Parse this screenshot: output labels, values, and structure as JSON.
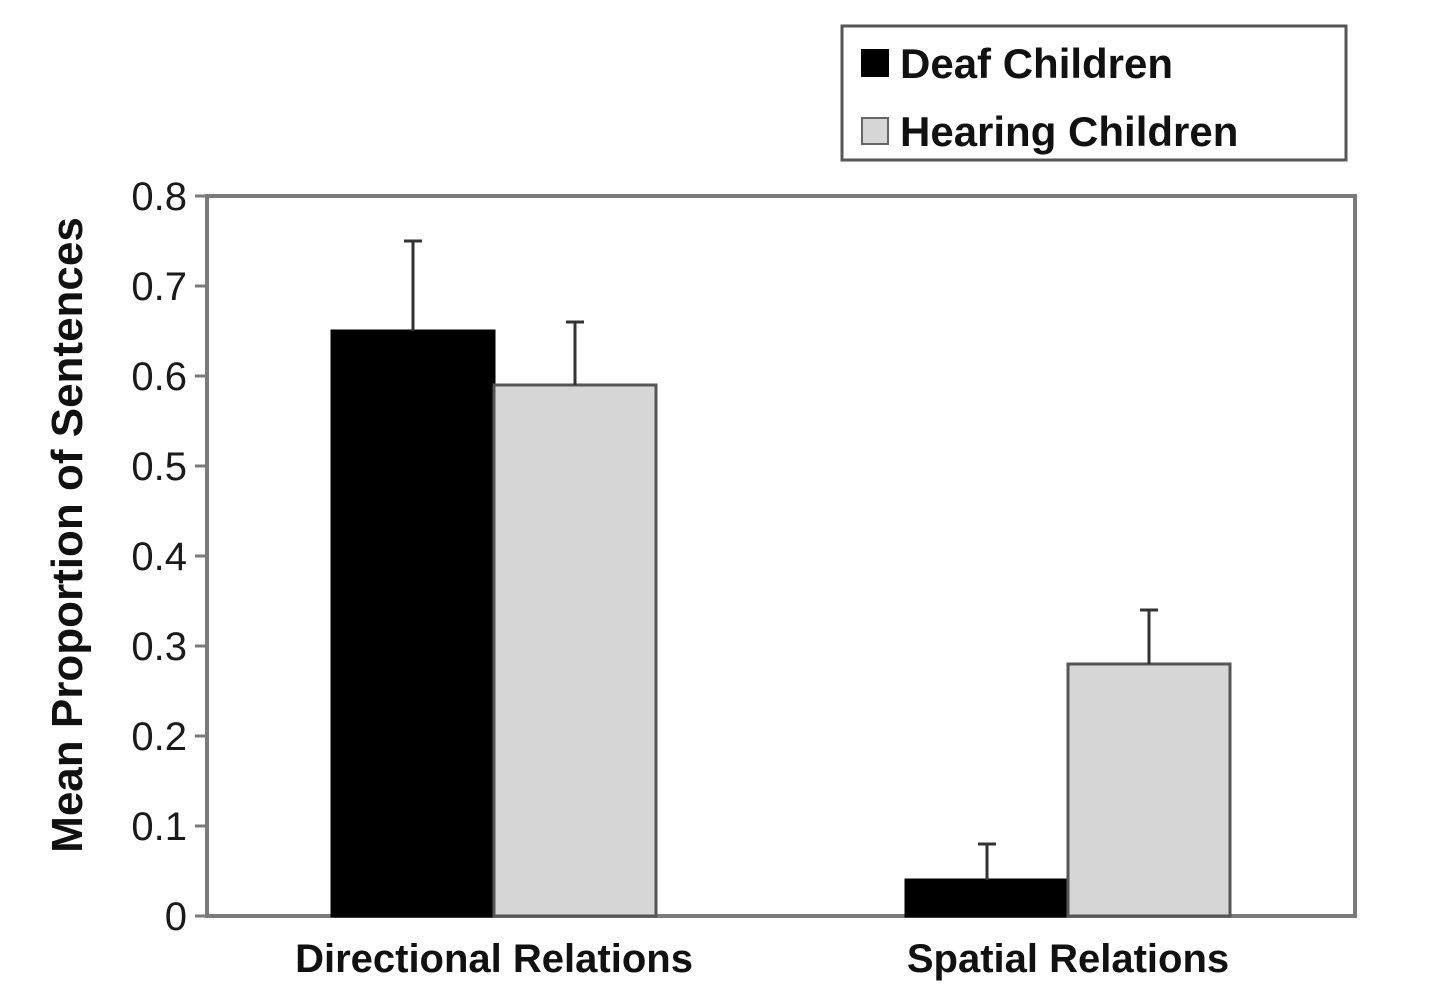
{
  "chart_data": {
    "type": "bar",
    "title": "",
    "xlabel": "",
    "ylabel": "Mean Proportion of Sentences",
    "ylim": [
      0,
      0.8
    ],
    "yticks": [
      "0",
      "0.1",
      "0.2",
      "0.3",
      "0.4",
      "0.5",
      "0.6",
      "0.7",
      "0.8"
    ],
    "yticks_values": [
      0,
      0.1,
      0.2,
      0.3,
      0.4,
      0.5,
      0.6,
      0.7,
      0.8
    ],
    "categories": [
      "Directional Relations",
      "Spatial Relations"
    ],
    "series": [
      {
        "name": "Deaf Children",
        "color": "#000000",
        "values": [
          0.65,
          0.04
        ],
        "error": [
          0.1,
          0.04
        ]
      },
      {
        "name": "Hearing Children",
        "color": "#d6d6d6",
        "values": [
          0.59,
          0.28
        ],
        "error": [
          0.07,
          0.06
        ]
      }
    ],
    "grid": false,
    "legend_position": "top-right",
    "error_bars": true
  }
}
